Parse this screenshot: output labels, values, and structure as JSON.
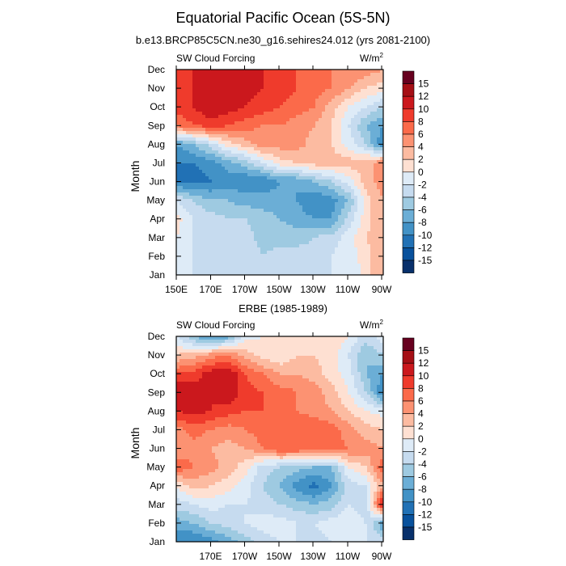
{
  "figure": {
    "title": "Equatorial Pacific Ocean (5S-5N)",
    "subtitle": "b.e13.BRCP85C5CN.ne30_g16.sehires24.012 (yrs 2081-2100)",
    "middle_title": "ERBE (1985-1989)"
  },
  "colorbar": {
    "levels": [
      "15",
      "12",
      "10",
      "8",
      "6",
      "4",
      "2",
      "0",
      "-2",
      "-4",
      "-6",
      "-8",
      "-10",
      "-12",
      "-15"
    ],
    "colors": [
      "#67001f",
      "#a50f15",
      "#cb181d",
      "#ef3b2c",
      "#fb6a4a",
      "#fc9272",
      "#fcbba1",
      "#fee0d2",
      "#deebf7",
      "#c6dbef",
      "#9ecae1",
      "#6baed6",
      "#4292c6",
      "#2171b5",
      "#08519c",
      "#08306b"
    ]
  },
  "chart_data": [
    {
      "type": "heatmap",
      "panel": "model",
      "left_label": "SW Cloud Forcing",
      "units_label": "W/m",
      "units_sup": "2",
      "xlabel": "",
      "ylabel": "Month",
      "x_ticks": [
        "150E",
        "170E",
        "170W",
        "150W",
        "130W",
        "110W",
        "90W"
      ],
      "y_ticks": [
        "Jan",
        "Feb",
        "Mar",
        "Apr",
        "May",
        "Jun",
        "Jul",
        "Aug",
        "Sep",
        "Oct",
        "Nov",
        "Dec"
      ],
      "x_range": "150E-90W",
      "values": [
        [
          -1,
          -2,
          -3,
          -2,
          -3,
          -4,
          -3,
          -3,
          -3,
          -2,
          -2,
          1,
          4
        ],
        [
          0,
          -2,
          -2,
          -3,
          -2,
          -4,
          -3,
          -3,
          -3,
          -2,
          -1,
          1,
          4
        ],
        [
          0,
          -2,
          -3,
          -2,
          -3,
          -5,
          -5,
          -5,
          -4,
          -3,
          -1,
          2,
          4
        ],
        [
          1,
          -2,
          -3,
          -4,
          -4,
          -5,
          -6,
          -7,
          -8,
          -8,
          -3,
          1,
          4
        ],
        [
          -2,
          -4,
          -6,
          -6,
          -7,
          -7,
          -7,
          -8,
          -10,
          -9,
          -6,
          1,
          4
        ],
        [
          -10,
          -11,
          -10,
          -9,
          -10,
          -10,
          -8,
          -8,
          -6,
          -4,
          -1,
          3,
          5
        ],
        [
          -10,
          -10,
          -9,
          -7,
          -5,
          -2,
          1,
          2,
          3,
          3,
          3,
          3,
          6
        ],
        [
          -8,
          -6,
          -3,
          1,
          3,
          5,
          5,
          5,
          3,
          2,
          -1,
          -4,
          -10
        ],
        [
          6,
          8,
          9,
          8,
          7,
          6,
          6,
          5,
          4,
          2,
          -2,
          -6,
          -8
        ],
        [
          9,
          10,
          12,
          11,
          10,
          9,
          8,
          7,
          6,
          3,
          0,
          -2,
          -4
        ],
        [
          9,
          10,
          12,
          12,
          11,
          10,
          9,
          8,
          7,
          6,
          4,
          2,
          1
        ],
        [
          9,
          10,
          10,
          11,
          10,
          10,
          9,
          8,
          8,
          6,
          6,
          5,
          4
        ]
      ]
    },
    {
      "type": "heatmap",
      "panel": "observations",
      "left_label": "SW Cloud Forcing",
      "units_label": "W/m",
      "units_sup": "2",
      "xlabel": "",
      "ylabel": "Month",
      "x_ticks": [
        "170E",
        "170W",
        "150W",
        "130W",
        "110W",
        "90W"
      ],
      "y_ticks": [
        "Jan",
        "Feb",
        "Mar",
        "Apr",
        "May",
        "Jun",
        "Jul",
        "Aug",
        "Sep",
        "Oct",
        "Nov",
        "Dec"
      ],
      "x_range": "150E-90W",
      "values": [
        [
          -10,
          -10,
          -9,
          -7,
          -5,
          -3,
          -2,
          -2,
          -3,
          -2,
          -1,
          -2,
          -3
        ],
        [
          -7,
          -6,
          -4,
          -3,
          -2,
          -1,
          -1,
          -2,
          -2,
          -1,
          0,
          -2,
          -8
        ],
        [
          -3,
          -2,
          -1,
          -2,
          -2,
          -3,
          -4,
          -5,
          -6,
          -5,
          -2,
          -4,
          12
        ],
        [
          0,
          3,
          2,
          1,
          -1,
          -4,
          -6,
          -9,
          -11,
          -8,
          -3,
          -2,
          4
        ],
        [
          8,
          6,
          5,
          3,
          1,
          -3,
          -4,
          -5,
          -6,
          -6,
          0,
          2,
          8
        ],
        [
          4,
          5,
          4,
          3,
          4,
          6,
          8,
          8,
          7,
          7,
          6,
          5,
          4
        ],
        [
          5,
          7,
          6,
          5,
          6,
          7,
          7,
          8,
          8,
          7,
          5,
          3,
          2
        ],
        [
          10,
          11,
          10,
          9,
          8,
          8,
          7,
          6,
          5,
          4,
          2,
          0,
          -1
        ],
        [
          12,
          11,
          10,
          12,
          9,
          8,
          7,
          6,
          5,
          3,
          0,
          -4,
          -10
        ],
        [
          8,
          9,
          11,
          12,
          8,
          6,
          4,
          4,
          3,
          1,
          -1,
          -6,
          -8
        ],
        [
          2,
          3,
          5,
          6,
          3,
          1,
          0,
          2,
          2,
          1,
          -2,
          -6,
          -4
        ],
        [
          -2,
          -6,
          -9,
          -7,
          -1,
          0,
          0,
          0,
          1,
          2,
          0,
          -3,
          -1
        ]
      ]
    }
  ]
}
